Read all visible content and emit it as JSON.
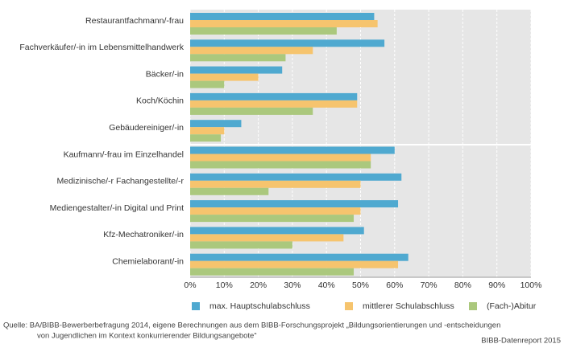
{
  "chart_data": {
    "type": "hbar",
    "categories": [
      "Restaurantfachmann/-frau",
      "Fachverkäufer/-in im Lebensmittelhandwerk",
      "Bäcker/-in",
      "Koch/Köchin",
      "Gebäudereiniger/-in",
      "Kaufmann/-frau im Einzelhandel",
      "Medizinische/-r Fachangestellte/-r",
      "Mediengestalter/-in Digital und Print",
      "Kfz-Mechatroniker/-in",
      "Chemielaborant/-in"
    ],
    "series": [
      {
        "name": "max. Hauptschulabschluss",
        "color": "#4fa9d0",
        "values": [
          54,
          57,
          27,
          49,
          15,
          60,
          62,
          61,
          51,
          64
        ]
      },
      {
        "name": "mittlerer Schulabschluss",
        "color": "#f6c46e",
        "values": [
          55,
          36,
          20,
          49,
          10,
          53,
          50,
          50,
          45,
          61
        ]
      },
      {
        "name": "(Fach-)Abitur",
        "color": "#abc87d",
        "values": [
          43,
          28,
          10,
          36,
          9,
          53,
          23,
          48,
          30,
          48
        ]
      }
    ],
    "xlim": [
      0,
      100
    ],
    "xticks": [
      {
        "value": 0,
        "label": "0%"
      },
      {
        "value": 10,
        "label": "10%"
      },
      {
        "value": 20,
        "label": "20%"
      },
      {
        "value": 30,
        "label": "30%"
      },
      {
        "value": 40,
        "label": "40%"
      },
      {
        "value": 50,
        "label": "50%"
      },
      {
        "value": 60,
        "label": "60%"
      },
      {
        "value": 70,
        "label": "70%"
      },
      {
        "value": 80,
        "label": "80%"
      },
      {
        "value": 90,
        "label": "90%"
      },
      {
        "value": 100,
        "label": "100%"
      }
    ],
    "grid": true,
    "source_lines": [
      "Quelle: BA/BIBB-Bewerberbefragung 2014, eigene Berechnungen aus dem BIBB-Forschungsprojekt „Bildungsorientierungen und -entscheidungen",
      "von Jugendlichen im Kontext konkurrierender Bildungsangebote“"
    ],
    "credit": "BIBB-Datenreport 2015"
  }
}
